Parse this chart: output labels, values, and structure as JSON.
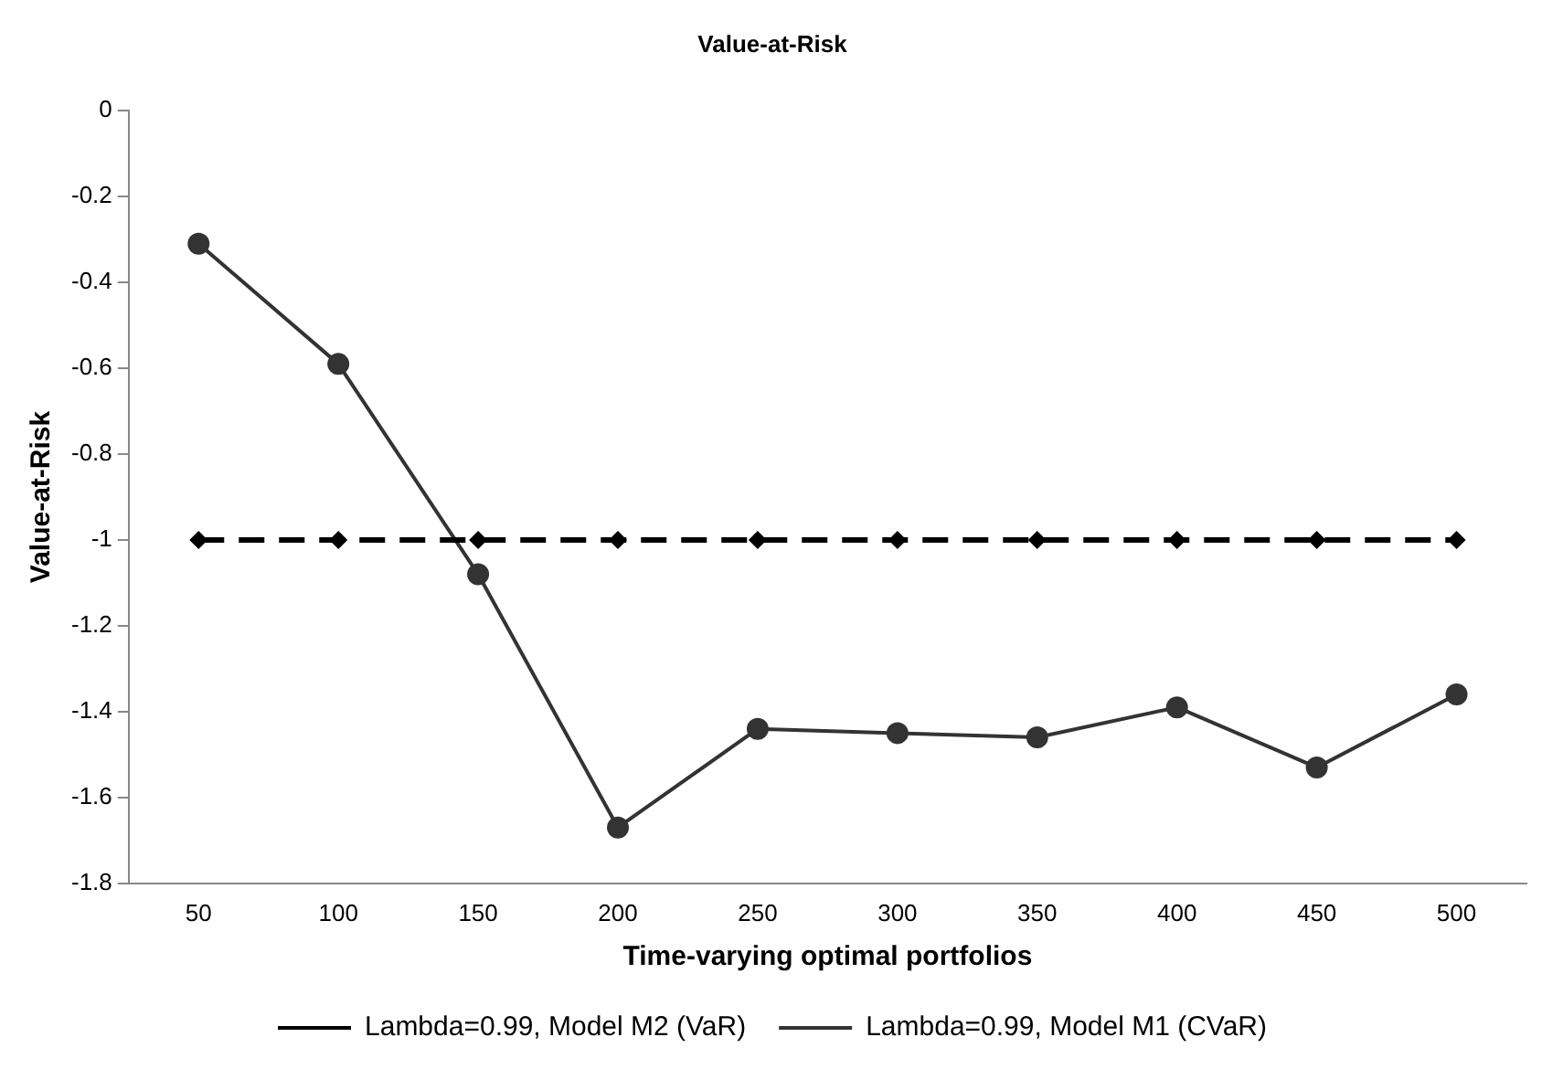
{
  "chart_data": {
    "type": "line",
    "title": "Value-at-Risk",
    "xlabel": "Time-varying optimal portfolios",
    "ylabel": "Value-at-Risk",
    "categories": [
      "50",
      "100",
      "150",
      "200",
      "250",
      "300",
      "350",
      "400",
      "450",
      "500"
    ],
    "series": [
      {
        "name": "Lambda=0.99, Model M2 (VaR)",
        "color": "#000000",
        "marker": "diamond",
        "line_style": "dashed",
        "values": [
          -1,
          -1,
          -1,
          -1,
          -1,
          -1,
          -1,
          -1,
          -1,
          -1
        ]
      },
      {
        "name": "Lambda=0.99, Model M1 (CVaR)",
        "color": "#333333",
        "marker": "circle",
        "line_style": "solid",
        "values": [
          -0.31,
          -0.59,
          -1.08,
          -1.67,
          -1.44,
          -1.45,
          -1.46,
          -1.39,
          -1.53,
          -1.36
        ]
      }
    ],
    "ylim": [
      -1.8,
      0
    ],
    "yticks": [
      -1.8,
      -1.6,
      -1.4,
      -1.2,
      -1,
      -0.8,
      -0.6,
      -0.4,
      -0.2,
      0
    ],
    "grid": false,
    "legend": "bottom"
  }
}
